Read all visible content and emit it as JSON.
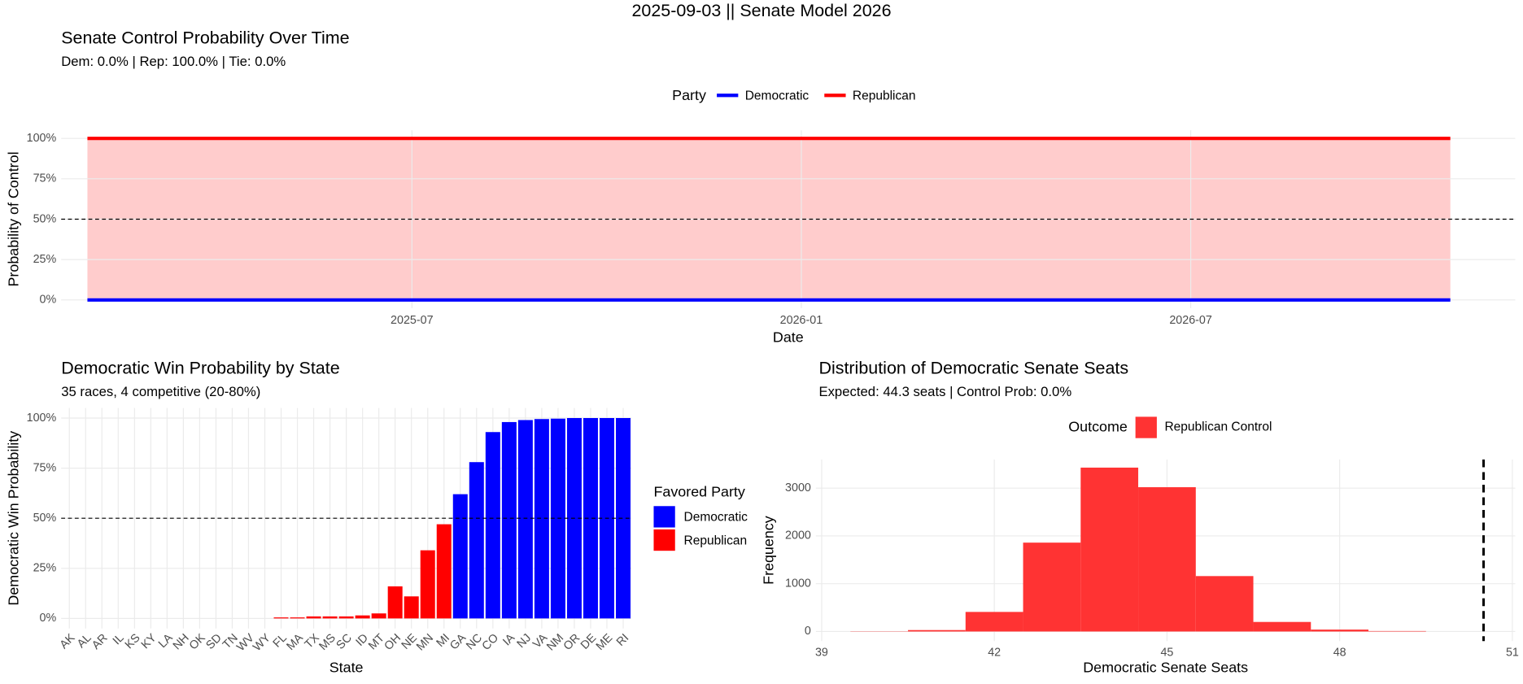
{
  "title": "2025-09-03 || Senate Model 2026",
  "chart_data": [
    {
      "type": "line",
      "title": "Senate Control Probability Over Time",
      "subtitle": "Dem: 0.0% | Rep: 100.0% | Tie: 0.0%",
      "x_label": "Date",
      "y_label": "Probability of Control",
      "x": [
        "2025-02",
        "2026-11"
      ],
      "series": [
        {
          "name": "Democratic",
          "color": "#0000ff",
          "values": [
            0,
            0
          ]
        },
        {
          "name": "Republican",
          "color": "#ff0000",
          "values": [
            100,
            100
          ],
          "area": true
        }
      ],
      "legend_title": "Party",
      "legend": "top",
      "xlim": [
        "2025-02",
        "2026-12"
      ],
      "xticks": [
        "2025-07",
        "2026-01",
        "2026-07"
      ],
      "ylim": [
        -5,
        105
      ],
      "yticks": [
        {
          "value": 0,
          "label": "0%"
        },
        {
          "value": 25,
          "label": "25%"
        },
        {
          "value": 50,
          "label": "50%"
        },
        {
          "value": 75,
          "label": "75%"
        },
        {
          "value": 100,
          "label": "100%"
        }
      ],
      "hline": 50,
      "grid": true
    },
    {
      "type": "bar",
      "title": "Democratic Win Probability by State",
      "subtitle": "35 races, 4 competitive (20-80%)",
      "x_label": "State",
      "y_label": "Democratic Win Probability",
      "categories": [
        "AK",
        "AL",
        "AR",
        "IL",
        "KS",
        "KY",
        "LA",
        "NH",
        "OK",
        "SD",
        "TN",
        "WV",
        "WY",
        "FL",
        "MA",
        "TX",
        "MS",
        "SC",
        "ID",
        "MT",
        "OH",
        "NE",
        "MN",
        "MI",
        "GA",
        "NC",
        "CO",
        "IA",
        "NJ",
        "VA",
        "NM",
        "OR",
        "DE",
        "ME",
        "RI"
      ],
      "values": [
        0,
        0,
        0,
        0,
        0,
        0,
        0,
        0,
        0,
        0,
        0,
        0,
        0,
        0.5,
        0.5,
        1,
        1,
        1,
        1.5,
        2.5,
        16,
        11,
        34,
        47,
        62,
        78,
        93,
        98,
        99,
        99.5,
        99.7,
        100,
        100,
        100,
        100
      ],
      "colors": [
        "#ff0000",
        "#ff0000",
        "#ff0000",
        "#ff0000",
        "#ff0000",
        "#ff0000",
        "#ff0000",
        "#ff0000",
        "#ff0000",
        "#ff0000",
        "#ff0000",
        "#ff0000",
        "#ff0000",
        "#ff0000",
        "#ff0000",
        "#ff0000",
        "#ff0000",
        "#ff0000",
        "#ff0000",
        "#ff0000",
        "#ff0000",
        "#ff0000",
        "#ff0000",
        "#ff0000",
        "#0000ff",
        "#0000ff",
        "#0000ff",
        "#0000ff",
        "#0000ff",
        "#0000ff",
        "#0000ff",
        "#0000ff",
        "#0000ff",
        "#0000ff",
        "#0000ff"
      ],
      "legend_title": "Favored Party",
      "legend": "right",
      "legend_items": [
        {
          "name": "Democratic",
          "color": "#0000ff"
        },
        {
          "name": "Republican",
          "color": "#ff0000"
        }
      ],
      "ylim": [
        -5,
        105
      ],
      "yticks": [
        {
          "value": 0,
          "label": "0%"
        },
        {
          "value": 25,
          "label": "25%"
        },
        {
          "value": 50,
          "label": "50%"
        },
        {
          "value": 75,
          "label": "75%"
        },
        {
          "value": 100,
          "label": "100%"
        }
      ],
      "hline": 50,
      "grid": true
    },
    {
      "type": "histogram",
      "title": "Distribution of Democratic Senate Seats",
      "subtitle": "Expected: 44.3 seats | Control Prob: 0.0%",
      "x_label": "Democratic Senate Seats",
      "y_label": "Frequency",
      "bins": [
        39.5,
        40.5,
        41.5,
        42.5,
        43.5,
        44.5,
        45.5,
        46.5,
        47.5,
        48.5,
        49.5
      ],
      "series": [
        {
          "name": "Republican Control",
          "color": "#ff3333",
          "values": [
            5,
            30,
            410,
            1860,
            3430,
            3020,
            1160,
            200,
            40,
            10
          ]
        }
      ],
      "legend_title": "Outcome",
      "legend": "top",
      "xlim": [
        38.9,
        51.05
      ],
      "xticks": [
        39,
        42,
        45,
        48,
        51
      ],
      "ylim": [
        -200,
        3600
      ],
      "yticks": [
        0,
        1000,
        2000,
        3000
      ],
      "vline": 50.5,
      "grid": true
    }
  ]
}
